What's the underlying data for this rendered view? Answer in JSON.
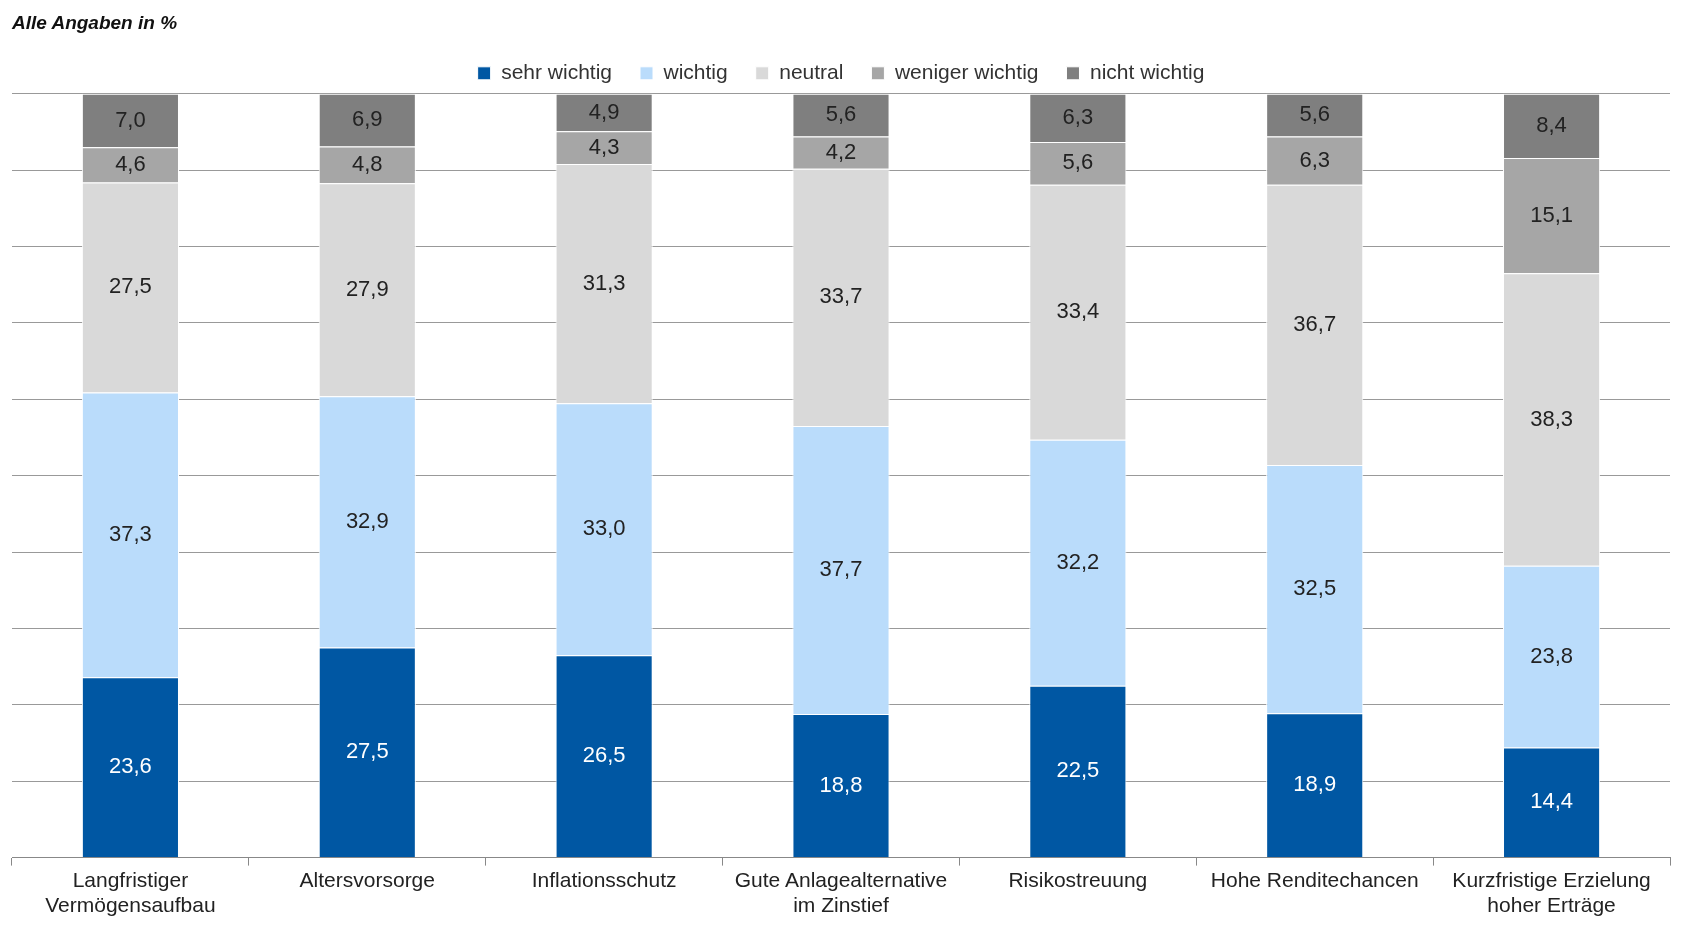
{
  "chart_data": {
    "type": "bar",
    "title": "Alle Angaben in %",
    "stacked": true,
    "legend": "top",
    "grid": "y",
    "tick_labels": "x",
    "categories": [
      "Langfristiger Vermögensaufbau",
      "Altersvorsorge",
      "Inflationsschutz",
      "Gute Anlagealternative im Zinstief",
      "Risikostreuung",
      "Hohe Renditechancen",
      "Kurzfristige Erzielung hoher Erträge"
    ],
    "series": [
      {
        "name": "sehr wichtig",
        "color": "#0057a3",
        "values": [
          23.6,
          27.5,
          26.5,
          18.8,
          22.5,
          18.9,
          14.4
        ],
        "value_labels": [
          "23,6",
          "27,5",
          "26,5",
          "18,8",
          "22,5",
          "18,9",
          "14,4"
        ]
      },
      {
        "name": "wichtig",
        "color": "#badcfb",
        "values": [
          37.3,
          32.9,
          33.0,
          37.7,
          32.2,
          32.5,
          23.8
        ],
        "value_labels": [
          "37,3",
          "32,9",
          "33,0",
          "37,7",
          "32,2",
          "32,5",
          "23,8"
        ]
      },
      {
        "name": "neutral",
        "color": "#d9d9d9",
        "values": [
          27.5,
          27.9,
          31.3,
          33.7,
          33.4,
          36.7,
          38.3
        ],
        "value_labels": [
          "27,5",
          "27,9",
          "31,3",
          "33,7",
          "33,4",
          "36,7",
          "38,3"
        ]
      },
      {
        "name": "weniger wichtig",
        "color": "#a6a6a6",
        "values": [
          4.6,
          4.8,
          4.3,
          4.2,
          5.6,
          6.3,
          15.1
        ],
        "value_labels": [
          "4,6",
          "4,8",
          "4,3",
          "4,2",
          "5,6",
          "6,3",
          "15,1"
        ]
      },
      {
        "name": "nicht wichtig",
        "color": "#7f7f7f",
        "values": [
          7.0,
          6.9,
          4.9,
          5.6,
          6.3,
          5.6,
          8.4
        ],
        "value_labels": [
          "7,0",
          "6,9",
          "4,9",
          "5,6",
          "6,3",
          "5,6",
          "8,4"
        ]
      }
    ]
  }
}
